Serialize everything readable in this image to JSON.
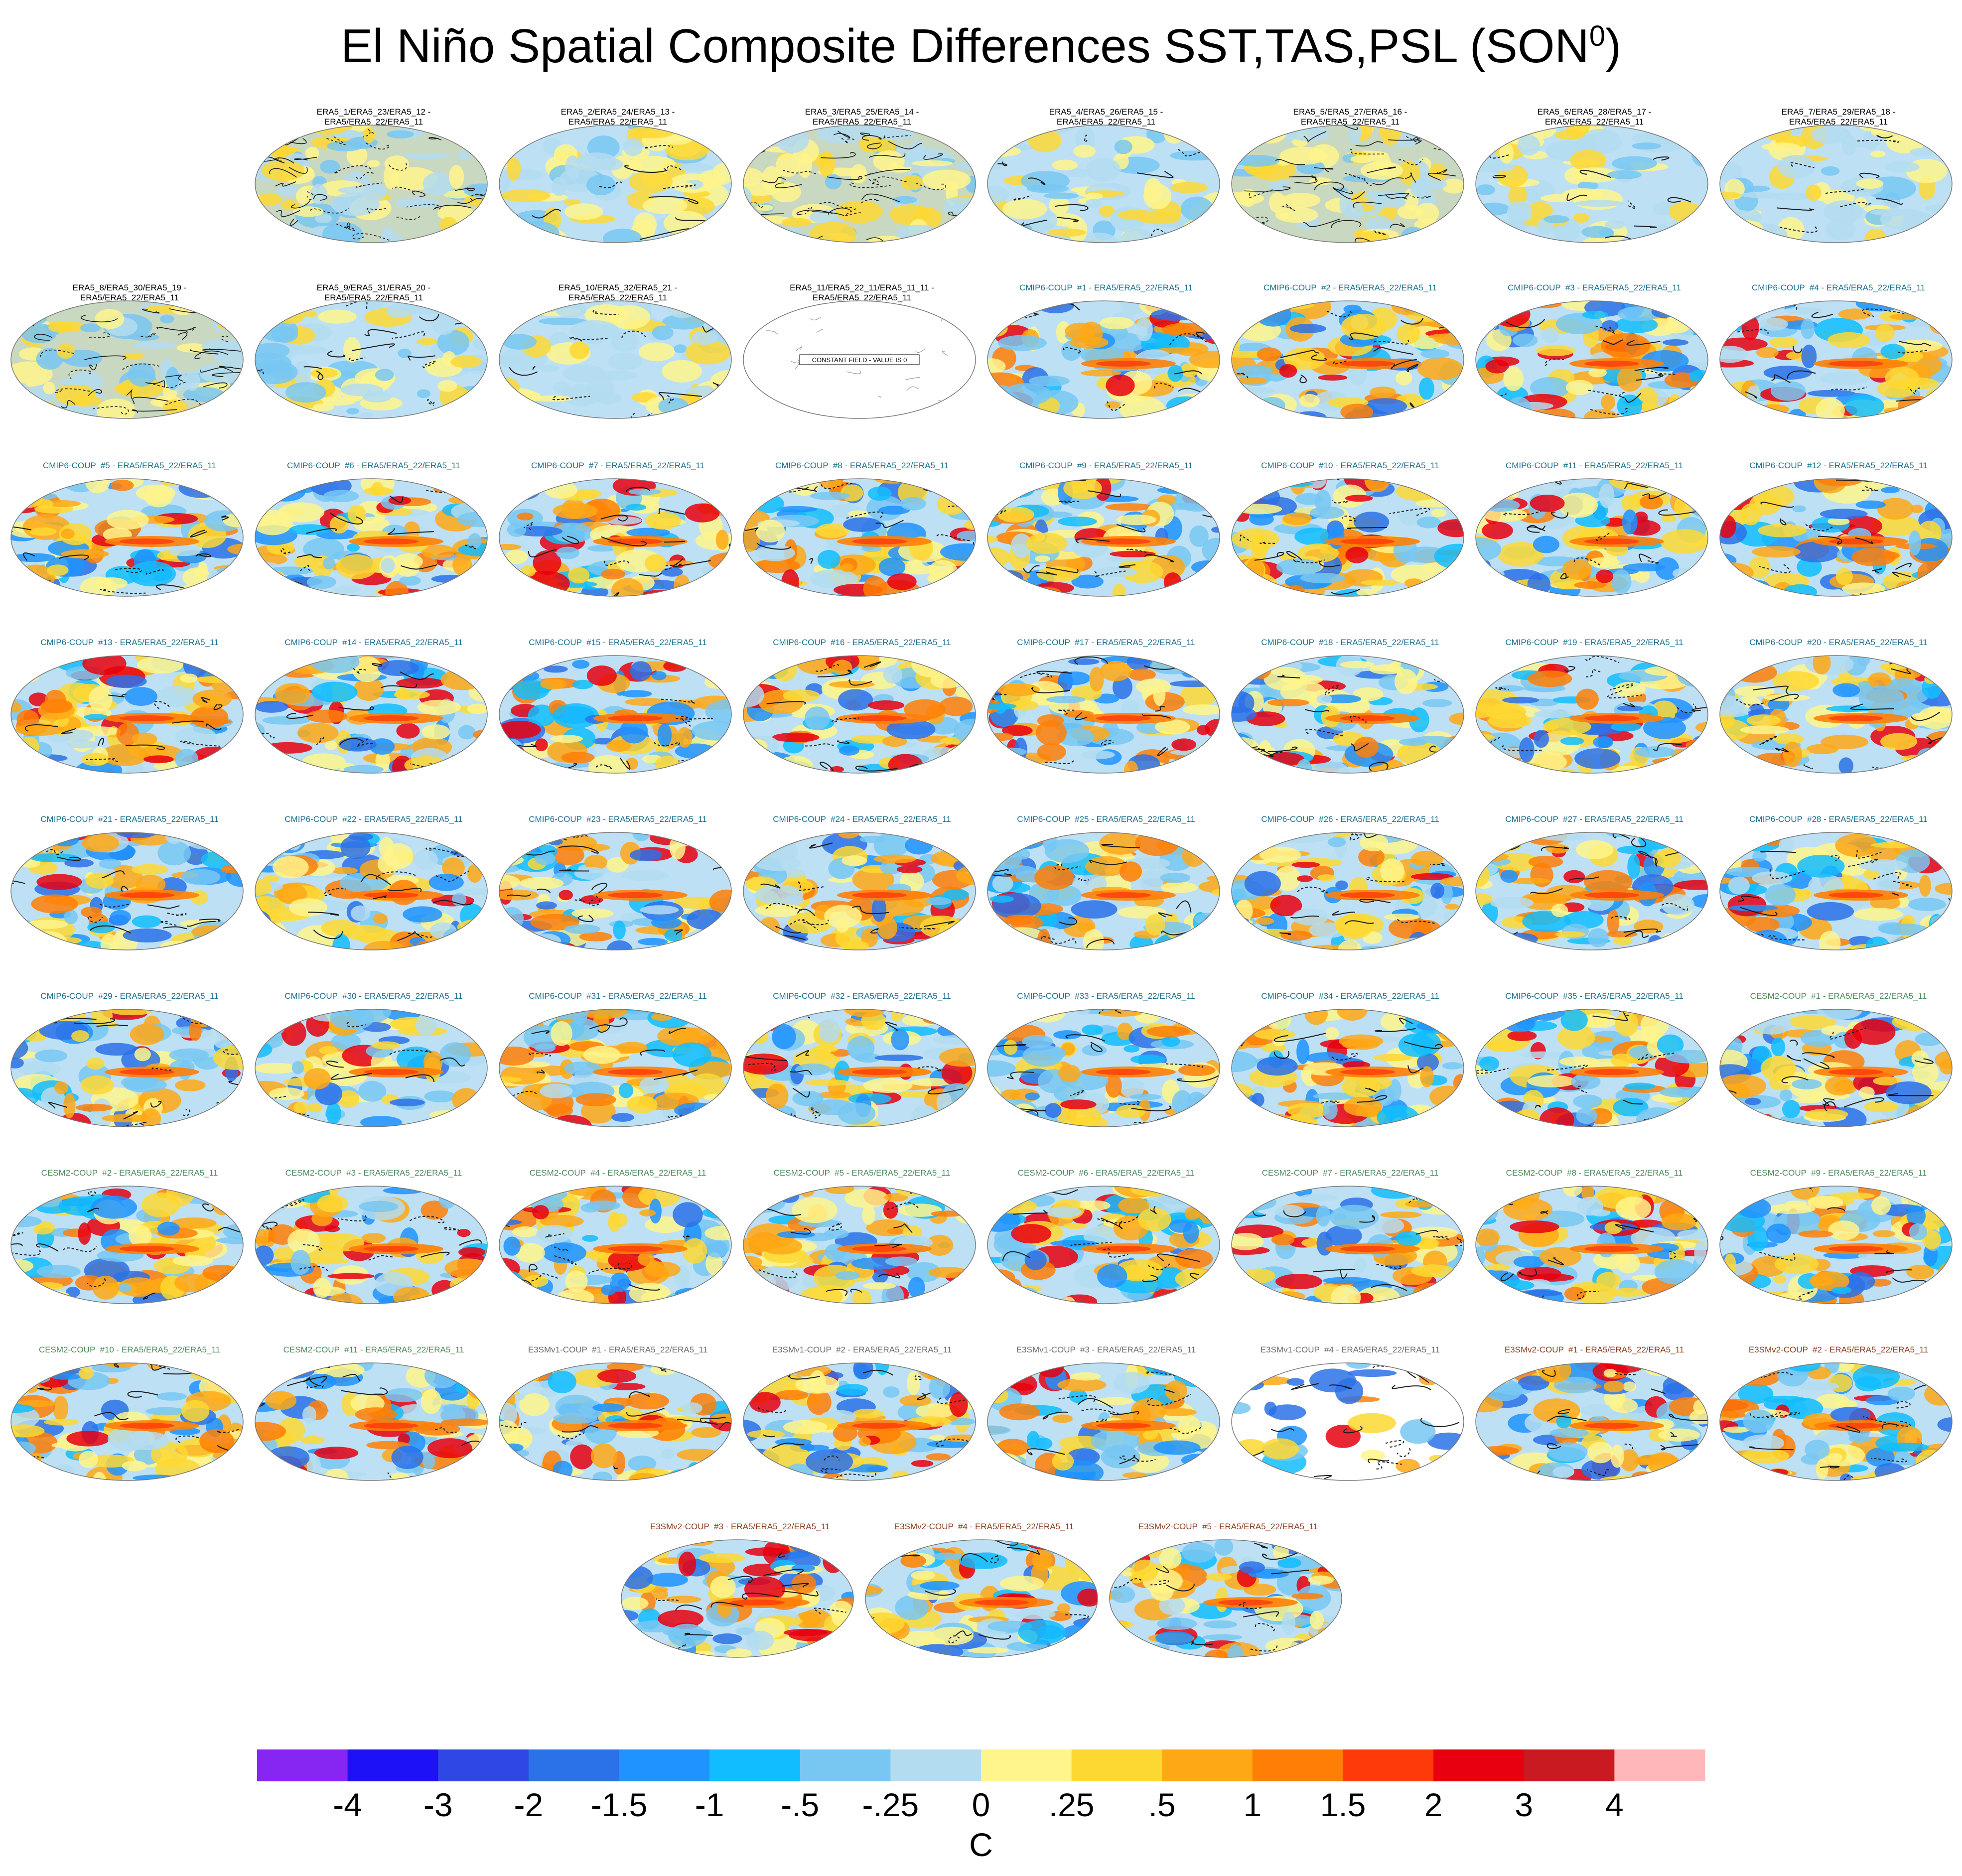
{
  "title": "El Niño Spatial Composite Differences SST,TAS,PSL (SON",
  "title_sup": "0",
  "title_close": ")",
  "colors": {
    "ocean_base": "#bde0f5",
    "land_grey": "#c9d8c0",
    "group_era5": "#000000",
    "group_cmip6": "#1a6e8e",
    "group_cesm2": "#4f8a5a",
    "group_e3smv1": "#6c6c6c",
    "group_e3smv2": "#8b3a1a"
  },
  "colorbar": {
    "unit": "C",
    "tick_labels": [
      "-4",
      "-3",
      "-2",
      "-1.5",
      "-1",
      "-.5",
      "-.25",
      "0",
      ".25",
      ".5",
      "1",
      "1.5",
      "2",
      "3",
      "4"
    ],
    "colors": [
      "#8526f2",
      "#1d11f5",
      "#2f47e5",
      "#2b71e8",
      "#1f93ff",
      "#12bdff",
      "#78c7f2",
      "#b4dcf0",
      "#fff58c",
      "#fed832",
      "#ffa815",
      "#ff7f06",
      "#fe3a0b",
      "#e8000f",
      "#c81a20",
      "#ffb7b9"
    ]
  },
  "chart_data": {
    "type": "heatmap",
    "title": "El Niño Spatial Composite Differences SST,TAS,PSL (SON0)",
    "variables": [
      "SST",
      "TAS",
      "PSL"
    ],
    "season": "SON",
    "colorbar_unit": "C",
    "colorbar_levels": [
      -4,
      -3,
      -2,
      -1.5,
      -1,
      -0.5,
      -0.25,
      0,
      0.25,
      0.5,
      1,
      1.5,
      2,
      3,
      4
    ],
    "panels": [
      {
        "row": 1,
        "col": 2,
        "group": "era5",
        "title_line1": "ERA5_1/ERA5_23/ERA5_12 -",
        "title_line2": "ERA5/ERA5_22/ERA5_11",
        "style": "noisy"
      },
      {
        "row": 1,
        "col": 3,
        "group": "era5",
        "title_line1": "ERA5_2/ERA5_24/ERA5_13 -",
        "title_line2": "ERA5/ERA5_22/ERA5_11",
        "style": "weak"
      },
      {
        "row": 1,
        "col": 4,
        "group": "era5",
        "title_line1": "ERA5_3/ERA5_25/ERA5_14 -",
        "title_line2": "ERA5/ERA5_22/ERA5_11",
        "style": "noisy"
      },
      {
        "row": 1,
        "col": 5,
        "group": "era5",
        "title_line1": "ERA5_4/ERA5_26/ERA5_15 -",
        "title_line2": "ERA5/ERA5_22/ERA5_11",
        "style": "weak"
      },
      {
        "row": 1,
        "col": 6,
        "group": "era5",
        "title_line1": "ERA5_5/ERA5_27/ERA5_16 -",
        "title_line2": "ERA5/ERA5_22/ERA5_11",
        "style": "noisy"
      },
      {
        "row": 1,
        "col": 7,
        "group": "era5",
        "title_line1": "ERA5_6/ERA5_28/ERA5_17 -",
        "title_line2": "ERA5/ERA5_22/ERA5_11",
        "style": "weak"
      },
      {
        "row": 1,
        "col": 8,
        "group": "era5",
        "title_line1": "ERA5_7/ERA5_29/ERA5_18 -",
        "title_line2": "ERA5/ERA5_22/ERA5_11",
        "style": "weak"
      },
      {
        "row": 2,
        "col": 1,
        "group": "era5",
        "title_line1": "ERA5_8/ERA5_30/ERA5_19 -",
        "title_line2": "ERA5/ERA5_22/ERA5_11",
        "style": "noisy"
      },
      {
        "row": 2,
        "col": 2,
        "group": "era5",
        "title_line1": "ERA5_9/ERA5_31/ERA5_20 -",
        "title_line2": "ERA5/ERA5_22/ERA5_11",
        "style": "weak"
      },
      {
        "row": 2,
        "col": 3,
        "group": "era5",
        "title_line1": "ERA5_10/ERA5_32/ERA5_21 -",
        "title_line2": "ERA5/ERA5_22/ERA5_11",
        "style": "weak"
      },
      {
        "row": 2,
        "col": 4,
        "group": "era5",
        "title_line1": "ERA5_11/ERA5_22_11/ERA5_11_11 -",
        "title_line2": "ERA5/ERA5_22/ERA5_11",
        "style": "constant",
        "note": "CONSTANT FIELD - VALUE IS 0"
      },
      {
        "row": 2,
        "col": 5,
        "group": "cmip6",
        "title_line1": "CMIP6-COUP  #1 - ERA5/ERA5_22/ERA5_11",
        "title_line2": "",
        "style": "model"
      },
      {
        "row": 2,
        "col": 6,
        "group": "cmip6",
        "title_line1": "CMIP6-COUP  #2 - ERA5/ERA5_22/ERA5_11",
        "title_line2": "",
        "style": "model"
      },
      {
        "row": 2,
        "col": 7,
        "group": "cmip6",
        "title_line1": "CMIP6-COUP  #3 - ERA5/ERA5_22/ERA5_11",
        "title_line2": "",
        "style": "model"
      },
      {
        "row": 2,
        "col": 8,
        "group": "cmip6",
        "title_line1": "CMIP6-COUP  #4 - ERA5/ERA5_22/ERA5_11",
        "title_line2": "",
        "style": "model"
      },
      {
        "row": 3,
        "col": 1,
        "group": "cmip6",
        "title_line1": "CMIP6-COUP  #5 - ERA5/ERA5_22/ERA5_11",
        "title_line2": "",
        "style": "model"
      },
      {
        "row": 3,
        "col": 2,
        "group": "cmip6",
        "title_line1": "CMIP6-COUP  #6 - ERA5/ERA5_22/ERA5_11",
        "title_line2": "",
        "style": "model"
      },
      {
        "row": 3,
        "col": 3,
        "group": "cmip6",
        "title_line1": "CMIP6-COUP  #7 - ERA5/ERA5_22/ERA5_11",
        "title_line2": "",
        "style": "model"
      },
      {
        "row": 3,
        "col": 4,
        "group": "cmip6",
        "title_line1": "CMIP6-COUP  #8 - ERA5/ERA5_22/ERA5_11",
        "title_line2": "",
        "style": "model"
      },
      {
        "row": 3,
        "col": 5,
        "group": "cmip6",
        "title_line1": "CMIP6-COUP  #9 - ERA5/ERA5_22/ERA5_11",
        "title_line2": "",
        "style": "model"
      },
      {
        "row": 3,
        "col": 6,
        "group": "cmip6",
        "title_line1": "CMIP6-COUP  #10 - ERA5/ERA5_22/ERA5_11",
        "title_line2": "",
        "style": "model"
      },
      {
        "row": 3,
        "col": 7,
        "group": "cmip6",
        "title_line1": "CMIP6-COUP  #11 - ERA5/ERA5_22/ERA5_11",
        "title_line2": "",
        "style": "model"
      },
      {
        "row": 3,
        "col": 8,
        "group": "cmip6",
        "title_line1": "CMIP6-COUP  #12 - ERA5/ERA5_22/ERA5_11",
        "title_line2": "",
        "style": "model"
      },
      {
        "row": 4,
        "col": 1,
        "group": "cmip6",
        "title_line1": "CMIP6-COUP  #13 - ERA5/ERA5_22/ERA5_11",
        "title_line2": "",
        "style": "model"
      },
      {
        "row": 4,
        "col": 2,
        "group": "cmip6",
        "title_line1": "CMIP6-COUP  #14 - ERA5/ERA5_22/ERA5_11",
        "title_line2": "",
        "style": "model"
      },
      {
        "row": 4,
        "col": 3,
        "group": "cmip6",
        "title_line1": "CMIP6-COUP  #15 - ERA5/ERA5_22/ERA5_11",
        "title_line2": "",
        "style": "model"
      },
      {
        "row": 4,
        "col": 4,
        "group": "cmip6",
        "title_line1": "CMIP6-COUP  #16 - ERA5/ERA5_22/ERA5_11",
        "title_line2": "",
        "style": "model"
      },
      {
        "row": 4,
        "col": 5,
        "group": "cmip6",
        "title_line1": "CMIP6-COUP  #17 - ERA5/ERA5_22/ERA5_11",
        "title_line2": "",
        "style": "model"
      },
      {
        "row": 4,
        "col": 6,
        "group": "cmip6",
        "title_line1": "CMIP6-COUP  #18 - ERA5/ERA5_22/ERA5_11",
        "title_line2": "",
        "style": "model"
      },
      {
        "row": 4,
        "col": 7,
        "group": "cmip6",
        "title_line1": "CMIP6-COUP  #19 - ERA5/ERA5_22/ERA5_11",
        "title_line2": "",
        "style": "model"
      },
      {
        "row": 4,
        "col": 8,
        "group": "cmip6",
        "title_line1": "CMIP6-COUP  #20 - ERA5/ERA5_22/ERA5_11",
        "title_line2": "",
        "style": "model"
      },
      {
        "row": 5,
        "col": 1,
        "group": "cmip6",
        "title_line1": "CMIP6-COUP  #21 - ERA5/ERA5_22/ERA5_11",
        "title_line2": "",
        "style": "model"
      },
      {
        "row": 5,
        "col": 2,
        "group": "cmip6",
        "title_line1": "CMIP6-COUP  #22 - ERA5/ERA5_22/ERA5_11",
        "title_line2": "",
        "style": "model"
      },
      {
        "row": 5,
        "col": 3,
        "group": "cmip6",
        "title_line1": "CMIP6-COUP  #23 - ERA5/ERA5_22/ERA5_11",
        "title_line2": "",
        "style": "model"
      },
      {
        "row": 5,
        "col": 4,
        "group": "cmip6",
        "title_line1": "CMIP6-COUP  #24 - ERA5/ERA5_22/ERA5_11",
        "title_line2": "",
        "style": "model"
      },
      {
        "row": 5,
        "col": 5,
        "group": "cmip6",
        "title_line1": "CMIP6-COUP  #25 - ERA5/ERA5_22/ERA5_11",
        "title_line2": "",
        "style": "model"
      },
      {
        "row": 5,
        "col": 6,
        "group": "cmip6",
        "title_line1": "CMIP6-COUP  #26 - ERA5/ERA5_22/ERA5_11",
        "title_line2": "",
        "style": "model"
      },
      {
        "row": 5,
        "col": 7,
        "group": "cmip6",
        "title_line1": "CMIP6-COUP  #27 - ERA5/ERA5_22/ERA5_11",
        "title_line2": "",
        "style": "model"
      },
      {
        "row": 5,
        "col": 8,
        "group": "cmip6",
        "title_line1": "CMIP6-COUP  #28 - ERA5/ERA5_22/ERA5_11",
        "title_line2": "",
        "style": "model"
      },
      {
        "row": 6,
        "col": 1,
        "group": "cmip6",
        "title_line1": "CMIP6-COUP  #29 - ERA5/ERA5_22/ERA5_11",
        "title_line2": "",
        "style": "model"
      },
      {
        "row": 6,
        "col": 2,
        "group": "cmip6",
        "title_line1": "CMIP6-COUP  #30 - ERA5/ERA5_22/ERA5_11",
        "title_line2": "",
        "style": "model"
      },
      {
        "row": 6,
        "col": 3,
        "group": "cmip6",
        "title_line1": "CMIP6-COUP  #31 - ERA5/ERA5_22/ERA5_11",
        "title_line2": "",
        "style": "model"
      },
      {
        "row": 6,
        "col": 4,
        "group": "cmip6",
        "title_line1": "CMIP6-COUP  #32 - ERA5/ERA5_22/ERA5_11",
        "title_line2": "",
        "style": "model"
      },
      {
        "row": 6,
        "col": 5,
        "group": "cmip6",
        "title_line1": "CMIP6-COUP  #33 - ERA5/ERA5_22/ERA5_11",
        "title_line2": "",
        "style": "model"
      },
      {
        "row": 6,
        "col": 6,
        "group": "cmip6",
        "title_line1": "CMIP6-COUP  #34 - ERA5/ERA5_22/ERA5_11",
        "title_line2": "",
        "style": "model"
      },
      {
        "row": 6,
        "col": 7,
        "group": "cmip6",
        "title_line1": "CMIP6-COUP  #35 - ERA5/ERA5_22/ERA5_11",
        "title_line2": "",
        "style": "model"
      },
      {
        "row": 6,
        "col": 8,
        "group": "cesm2",
        "title_line1": "CESM2-COUP  #1 - ERA5/ERA5_22/ERA5_11",
        "title_line2": "",
        "style": "model"
      },
      {
        "row": 7,
        "col": 1,
        "group": "cesm2",
        "title_line1": "CESM2-COUP  #2 - ERA5/ERA5_22/ERA5_11",
        "title_line2": "",
        "style": "model"
      },
      {
        "row": 7,
        "col": 2,
        "group": "cesm2",
        "title_line1": "CESM2-COUP  #3 - ERA5/ERA5_22/ERA5_11",
        "title_line2": "",
        "style": "model"
      },
      {
        "row": 7,
        "col": 3,
        "group": "cesm2",
        "title_line1": "CESM2-COUP  #4 - ERA5/ERA5_22/ERA5_11",
        "title_line2": "",
        "style": "model"
      },
      {
        "row": 7,
        "col": 4,
        "group": "cesm2",
        "title_line1": "CESM2-COUP  #5 - ERA5/ERA5_22/ERA5_11",
        "title_line2": "",
        "style": "model"
      },
      {
        "row": 7,
        "col": 5,
        "group": "cesm2",
        "title_line1": "CESM2-COUP  #6 - ERA5/ERA5_22/ERA5_11",
        "title_line2": "",
        "style": "model"
      },
      {
        "row": 7,
        "col": 6,
        "group": "cesm2",
        "title_line1": "CESM2-COUP  #7 - ERA5/ERA5_22/ERA5_11",
        "title_line2": "",
        "style": "model"
      },
      {
        "row": 7,
        "col": 7,
        "group": "cesm2",
        "title_line1": "CESM2-COUP  #8 - ERA5/ERA5_22/ERA5_11",
        "title_line2": "",
        "style": "model"
      },
      {
        "row": 7,
        "col": 8,
        "group": "cesm2",
        "title_line1": "CESM2-COUP  #9 - ERA5/ERA5_22/ERA5_11",
        "title_line2": "",
        "style": "model"
      },
      {
        "row": 8,
        "col": 1,
        "group": "cesm2",
        "title_line1": "CESM2-COUP  #10 - ERA5/ERA5_22/ERA5_11",
        "title_line2": "",
        "style": "model"
      },
      {
        "row": 8,
        "col": 2,
        "group": "cesm2",
        "title_line1": "CESM2-COUP  #11 - ERA5/ERA5_22/ERA5_11",
        "title_line2": "",
        "style": "model"
      },
      {
        "row": 8,
        "col": 3,
        "group": "e3smv1",
        "title_line1": "E3SMv1-COUP  #1 - ERA5/ERA5_22/ERA5_11",
        "title_line2": "",
        "style": "model"
      },
      {
        "row": 8,
        "col": 4,
        "group": "e3smv1",
        "title_line1": "E3SMv1-COUP  #2 - ERA5/ERA5_22/ERA5_11",
        "title_line2": "",
        "style": "model"
      },
      {
        "row": 8,
        "col": 5,
        "group": "e3smv1",
        "title_line1": "E3SMv1-COUP  #3 - ERA5/ERA5_22/ERA5_11",
        "title_line2": "",
        "style": "model"
      },
      {
        "row": 8,
        "col": 6,
        "group": "e3smv1",
        "title_line1": "E3SMv1-COUP  #4 - ERA5/ERA5_22/ERA5_11",
        "title_line2": "",
        "style": "sparse"
      },
      {
        "row": 8,
        "col": 7,
        "group": "e3smv2",
        "title_line1": "E3SMv2-COUP  #1 - ERA5/ERA5_22/ERA5_11",
        "title_line2": "",
        "style": "model"
      },
      {
        "row": 8,
        "col": 8,
        "group": "e3smv2",
        "title_line1": "E3SMv2-COUP  #2 - ERA5/ERA5_22/ERA5_11",
        "title_line2": "",
        "style": "model"
      },
      {
        "row": 9,
        "col": 1,
        "group": "e3smv2",
        "title_line1": "E3SMv2-COUP  #3 - ERA5/ERA5_22/ERA5_11",
        "title_line2": "",
        "style": "model"
      },
      {
        "row": 9,
        "col": 2,
        "group": "e3smv2",
        "title_line1": "E3SMv2-COUP  #4 - ERA5/ERA5_22/ERA5_11",
        "title_line2": "",
        "style": "model"
      },
      {
        "row": 9,
        "col": 3,
        "group": "e3smv2",
        "title_line1": "E3SMv2-COUP  #5 - ERA5/ERA5_22/ERA5_11",
        "title_line2": "",
        "style": "model"
      }
    ]
  }
}
